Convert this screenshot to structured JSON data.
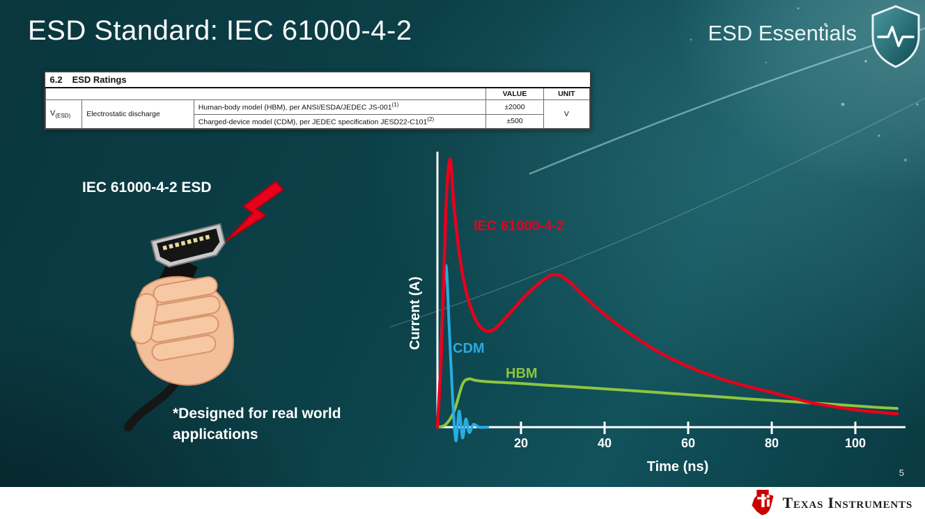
{
  "slide": {
    "title": "ESD Standard: IEC 61000-4-2",
    "series_label": "ESD Essentials",
    "illustration_label": "IEC 61000-4-2 ESD",
    "footnote": "*Designed for real world applications",
    "page_number": "5",
    "footer_brand": "Texas Instruments"
  },
  "ratings_table": {
    "caption_number": "6.2",
    "caption_text": "ESD Ratings",
    "headers": {
      "value": "VALUE",
      "unit": "UNIT"
    },
    "symbol": "V",
    "symbol_sub": "(ESD)",
    "parameter": "Electrostatic discharge",
    "rows": [
      {
        "description": "Human-body model (HBM), per ANSI/ESDA/JEDEC JS-001",
        "sup": "(1)",
        "value": "±2000"
      },
      {
        "description": "Charged-device model (CDM), per JEDEC specification JESD22-C101",
        "sup": "(2)",
        "value": "±500"
      }
    ],
    "unit": "V"
  },
  "chart_data": {
    "type": "line",
    "title": "",
    "xlabel": "Time (ns)",
    "ylabel": "Current (A)",
    "x_ticks": [
      20,
      40,
      60,
      80,
      100
    ],
    "xlim": [
      0,
      112
    ],
    "ylim": [
      -0.08,
      1.05
    ],
    "grid": false,
    "legend_position": "inline-labels",
    "y_axis_tick_labels": "none (relative current, peak normalized to 1)",
    "series": [
      {
        "name": "IEC 61000-4-2",
        "color": "#e8001c",
        "x": [
          0,
          1,
          2,
          3,
          4,
          5.5,
          7.5,
          10,
          13,
          17,
          21,
          25,
          28,
          31,
          35,
          40,
          46,
          53,
          61,
          70,
          80,
          90,
          100,
          106,
          110
        ],
        "y": [
          0,
          0.3,
          0.8,
          1.0,
          0.82,
          0.62,
          0.47,
          0.38,
          0.36,
          0.42,
          0.49,
          0.545,
          0.57,
          0.55,
          0.49,
          0.42,
          0.35,
          0.28,
          0.22,
          0.17,
          0.13,
          0.09,
          0.065,
          0.055,
          0.05
        ]
      },
      {
        "name": "CDM",
        "color": "#29abe2",
        "x": [
          0,
          0.7,
          1.4,
          2.1,
          2.8,
          3.6,
          4.4,
          5.2,
          6.0,
          6.8,
          7.6,
          8.6,
          10,
          12
        ],
        "y": [
          0,
          0.22,
          0.5,
          0.6,
          0.38,
          0.12,
          -0.05,
          0.06,
          -0.04,
          0.03,
          -0.02,
          0.01,
          0,
          0
        ]
      },
      {
        "name": "HBM",
        "color": "#8dc63f",
        "x": [
          0,
          2,
          4,
          6,
          7.5,
          9,
          12,
          18,
          25,
          35,
          45,
          55,
          65,
          75,
          85,
          95,
          105,
          110
        ],
        "y": [
          0,
          0.01,
          0.06,
          0.16,
          0.18,
          0.175,
          0.17,
          0.165,
          0.158,
          0.148,
          0.138,
          0.127,
          0.116,
          0.105,
          0.095,
          0.085,
          0.074,
          0.07
        ]
      }
    ]
  },
  "colors": {
    "background_teal": "#0c4149",
    "accent_red": "#e8001c",
    "accent_cyan": "#29abe2",
    "accent_green": "#8dc63f",
    "ti_red": "#cc0000",
    "axis_white": "#ffffff"
  }
}
